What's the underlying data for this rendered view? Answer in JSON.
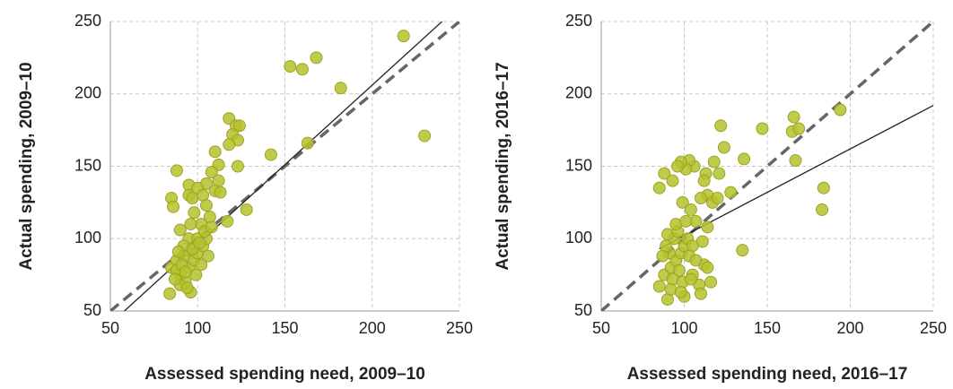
{
  "chart_data": [
    {
      "type": "scatter",
      "color": "#b5c22d",
      "grid": true,
      "x_label": "Assessed spending need, 2009–10",
      "y_label": "Actual spending, 2009–10",
      "xlim": [
        50,
        250
      ],
      "ylim": [
        50,
        250
      ],
      "xticks": [
        50,
        100,
        150,
        200,
        250
      ],
      "yticks": [
        50,
        100,
        150,
        200,
        250
      ],
      "x": [
        230,
        218,
        168,
        153,
        160,
        182,
        163,
        142,
        128,
        118,
        122,
        124,
        120,
        123,
        118,
        123,
        110,
        112,
        108,
        112,
        105,
        110,
        113,
        117,
        88,
        85,
        86,
        95,
        95,
        97,
        100,
        103,
        98,
        105,
        102,
        107,
        90,
        95,
        100,
        92,
        97,
        85,
        88,
        90,
        93,
        95,
        98,
        100,
        103,
        105,
        92,
        88,
        90,
        84,
        96,
        94,
        102,
        106,
        99,
        91,
        87,
        93,
        97,
        101,
        104,
        108,
        96,
        89
      ],
      "values": [
        171,
        240,
        225,
        219,
        217,
        204,
        166,
        158,
        120,
        183,
        178,
        178,
        172,
        168,
        165,
        150,
        160,
        151,
        146,
        140,
        138,
        133,
        132,
        112,
        147,
        128,
        122,
        137,
        130,
        128,
        135,
        130,
        118,
        123,
        110,
        115,
        106,
        100,
        100,
        95,
        90,
        80,
        85,
        75,
        70,
        80,
        85,
        90,
        95,
        100,
        88,
        78,
        68,
        62,
        63,
        66,
        82,
        88,
        75,
        82,
        72,
        77,
        93,
        97,
        105,
        108,
        110,
        91
      ],
      "lines": [
        {
          "style": "dashed",
          "color": "#666666",
          "x": [
            50,
            250
          ],
          "y": [
            50,
            250
          ]
        },
        {
          "style": "solid",
          "color": "#222222",
          "x": [
            58,
            240
          ],
          "y": [
            50,
            250
          ]
        }
      ]
    },
    {
      "type": "scatter",
      "color": "#b5c22d",
      "grid": true,
      "x_label": "Assessed spending need, 2016–17",
      "y_label": "Actual spending, 2016–17",
      "xlim": [
        50,
        250
      ],
      "ylim": [
        50,
        250
      ],
      "xticks": [
        50,
        100,
        150,
        200,
        250
      ],
      "yticks": [
        50,
        100,
        150,
        200,
        250
      ],
      "x": [
        194,
        166,
        165,
        169,
        147,
        122,
        124,
        167,
        136,
        184,
        183,
        135,
        128,
        121,
        118,
        113,
        112,
        114,
        106,
        103,
        101,
        98,
        96,
        88,
        85,
        93,
        99,
        104,
        110,
        117,
        120,
        107,
        114,
        111,
        112,
        114,
        109,
        116,
        110,
        100,
        90,
        85,
        88,
        92,
        95,
        98,
        100,
        94,
        90,
        96,
        102,
        105,
        103,
        97,
        93,
        99,
        105,
        107,
        91,
        87,
        89,
        95,
        101,
        92,
        98,
        104
      ],
      "values": [
        189,
        184,
        174,
        176,
        176,
        178,
        163,
        154,
        155,
        135,
        120,
        92,
        132,
        145,
        153,
        145,
        140,
        130,
        150,
        154,
        148,
        153,
        150,
        145,
        135,
        140,
        125,
        120,
        128,
        125,
        128,
        112,
        108,
        98,
        82,
        80,
        68,
        70,
        62,
        60,
        58,
        67,
        75,
        80,
        85,
        90,
        95,
        100,
        103,
        105,
        100,
        95,
        88,
        78,
        72,
        70,
        75,
        85,
        90,
        88,
        95,
        110,
        112,
        65,
        63,
        72
      ],
      "lines": [
        {
          "style": "dashed",
          "color": "#666666",
          "x": [
            50,
            250
          ],
          "y": [
            50,
            250
          ]
        },
        {
          "style": "solid",
          "color": "#222222",
          "x": [
            85,
            250
          ],
          "y": [
            93,
            192
          ]
        }
      ]
    }
  ]
}
